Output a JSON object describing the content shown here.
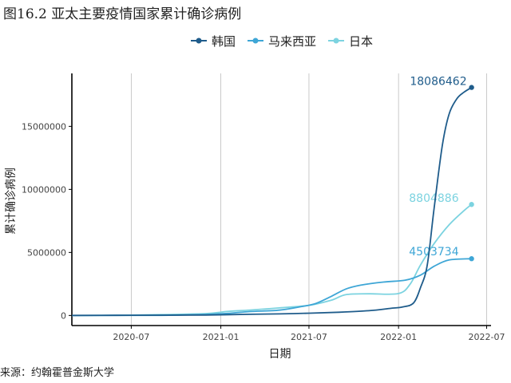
{
  "figure_title": "图16.2 亚太主要疫情国家累计确诊病例",
  "source_note": "来源：约翰霍普金斯大学",
  "colors": {
    "korea": "#1f5c8b",
    "malaysia": "#3ea6d6",
    "japan": "#7cd3e0",
    "grid": "#bdbdbd",
    "axis": "#000000"
  },
  "chart_data": {
    "type": "line",
    "title": "",
    "xlabel": "日期",
    "ylabel": "累计确诊病例",
    "x_axis": "date",
    "xlim": [
      "2020-03-01",
      "2022-07-10"
    ],
    "ylim": [
      -800000,
      19200000
    ],
    "x_ticks": [
      "2020-07-01",
      "2021-01-01",
      "2021-07-01",
      "2022-01-01",
      "2022-07-01"
    ],
    "x_tick_labels": [
      "2020-07",
      "2021-01",
      "2021-07",
      "2022-01",
      "2022-07"
    ],
    "y_ticks": [
      0,
      5000000,
      10000000,
      15000000
    ],
    "y_tick_labels": [
      "0",
      "5000000",
      "10000000",
      "15000000"
    ],
    "grid": "vertical major lines",
    "legend_position": "top",
    "series": [
      {
        "name": "韩国",
        "color_key": "korea",
        "end_label": "18086462",
        "points": [
          [
            "2020-03-01",
            3500
          ],
          [
            "2020-06-01",
            12000
          ],
          [
            "2020-09-01",
            21000
          ],
          [
            "2020-12-01",
            35000
          ],
          [
            "2021-03-01",
            90000
          ],
          [
            "2021-06-01",
            150000
          ],
          [
            "2021-09-01",
            260000
          ],
          [
            "2021-11-01",
            380000
          ],
          [
            "2021-12-15",
            560000
          ],
          [
            "2022-01-10",
            680000
          ],
          [
            "2022-02-01",
            1000000
          ],
          [
            "2022-02-15",
            2200000
          ],
          [
            "2022-03-01",
            4000000
          ],
          [
            "2022-03-15",
            8500000
          ],
          [
            "2022-04-01",
            13500000
          ],
          [
            "2022-04-15",
            16000000
          ],
          [
            "2022-05-01",
            17200000
          ],
          [
            "2022-05-15",
            17700000
          ],
          [
            "2022-05-31",
            18086462
          ]
        ]
      },
      {
        "name": "马来西亚",
        "color_key": "malaysia",
        "end_label": "4503734",
        "points": [
          [
            "2020-03-01",
            30
          ],
          [
            "2020-06-01",
            8000
          ],
          [
            "2020-09-01",
            9500
          ],
          [
            "2020-12-01",
            80000
          ],
          [
            "2021-01-15",
            160000
          ],
          [
            "2021-03-01",
            310000
          ],
          [
            "2021-05-01",
            420000
          ],
          [
            "2021-06-15",
            700000
          ],
          [
            "2021-07-15",
            950000
          ],
          [
            "2021-08-15",
            1500000
          ],
          [
            "2021-09-15",
            2100000
          ],
          [
            "2021-10-15",
            2400000
          ],
          [
            "2021-12-01",
            2650000
          ],
          [
            "2022-01-15",
            2800000
          ],
          [
            "2022-02-15",
            3200000
          ],
          [
            "2022-03-15",
            3900000
          ],
          [
            "2022-04-15",
            4400000
          ],
          [
            "2022-05-31",
            4503734
          ]
        ]
      },
      {
        "name": "日本",
        "color_key": "japan",
        "end_label": "8804886",
        "points": [
          [
            "2020-03-01",
            250
          ],
          [
            "2020-06-01",
            17000
          ],
          [
            "2020-09-01",
            70000
          ],
          [
            "2020-12-01",
            150000
          ],
          [
            "2021-01-15",
            320000
          ],
          [
            "2021-03-01",
            430000
          ],
          [
            "2021-05-01",
            600000
          ],
          [
            "2021-07-01",
            800000
          ],
          [
            "2021-08-15",
            1200000
          ],
          [
            "2021-09-15",
            1650000
          ],
          [
            "2021-11-01",
            1720000
          ],
          [
            "2022-01-01",
            1740000
          ],
          [
            "2022-01-25",
            2500000
          ],
          [
            "2022-02-15",
            4000000
          ],
          [
            "2022-03-15",
            5700000
          ],
          [
            "2022-04-15",
            7200000
          ],
          [
            "2022-05-15",
            8300000
          ],
          [
            "2022-05-31",
            8804886
          ]
        ]
      }
    ]
  }
}
